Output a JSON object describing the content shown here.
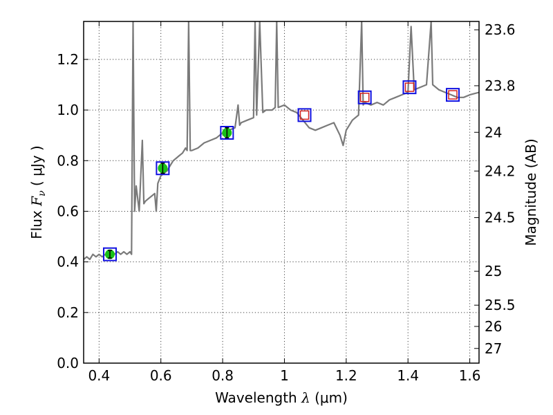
{
  "chart_data": {
    "type": "line",
    "title": "",
    "xlabel": "Wavelength  λ (μm)",
    "ylabel": "Flux  F_ν  ( μJy )",
    "ylabel_parts": {
      "prefix": "Flux ",
      "symbol": "F",
      "subscript": "ν",
      "unit_open": "  ( ",
      "unit": "μJy",
      "unit_close": " )"
    },
    "xlabel_parts": {
      "prefix": "Wavelength  ",
      "symbol": "λ",
      "unit": " (μm)"
    },
    "y2label": "Magnitude (AB)",
    "xlim": [
      0.35,
      1.63
    ],
    "ylim": [
      0.0,
      1.35
    ],
    "xticks": [
      {
        "value": 0.4,
        "label": "0.4"
      },
      {
        "value": 0.6,
        "label": "0.6"
      },
      {
        "value": 0.8,
        "label": "0.8"
      },
      {
        "value": 1.0,
        "label": "1"
      },
      {
        "value": 1.2,
        "label": "1.2"
      },
      {
        "value": 1.4,
        "label": "1.4"
      },
      {
        "value": 1.6,
        "label": "1.6"
      }
    ],
    "yticks": [
      {
        "value": 0.0,
        "label": "0.0"
      },
      {
        "value": 0.2,
        "label": "0.2"
      },
      {
        "value": 0.4,
        "label": "0.4"
      },
      {
        "value": 0.6,
        "label": "0.6"
      },
      {
        "value": 0.8,
        "label": "0.8"
      },
      {
        "value": 1.0,
        "label": "1.0"
      },
      {
        "value": 1.2,
        "label": "1.2"
      }
    ],
    "y2ticks": [
      {
        "label": "23.6",
        "flux": 1.317
      },
      {
        "label": "23.8",
        "flux": 1.096
      },
      {
        "label": "24",
        "flux": 0.912
      },
      {
        "label": "24.2",
        "flux": 0.759
      },
      {
        "label": "24.5",
        "flux": 0.575
      },
      {
        "label": "25",
        "flux": 0.363
      },
      {
        "label": "25.5",
        "flux": 0.229
      },
      {
        "label": "26",
        "flux": 0.145
      },
      {
        "label": "27",
        "flux": 0.058
      }
    ],
    "grid": true,
    "colors": {
      "spectrum": "#7a7a7a",
      "marker_box": "#1010e0",
      "observed_fill": "#18c018",
      "model_point": "#d02020"
    },
    "series": [
      {
        "kind": "line",
        "points": [
          [
            0.35,
            0.41
          ],
          [
            0.36,
            0.42
          ],
          [
            0.37,
            0.41
          ],
          [
            0.38,
            0.43
          ],
          [
            0.39,
            0.42
          ],
          [
            0.4,
            0.43
          ],
          [
            0.41,
            0.42
          ],
          [
            0.42,
            0.43
          ],
          [
            0.43,
            0.42
          ],
          [
            0.44,
            0.44
          ],
          [
            0.45,
            0.43
          ],
          [
            0.46,
            0.44
          ],
          [
            0.47,
            0.43
          ],
          [
            0.48,
            0.44
          ],
          [
            0.49,
            0.43
          ],
          [
            0.5,
            0.44
          ],
          [
            0.505,
            0.43
          ],
          [
            0.51,
            1.35
          ],
          [
            0.515,
            0.6
          ],
          [
            0.52,
            0.7
          ],
          [
            0.53,
            0.6
          ],
          [
            0.54,
            0.88
          ],
          [
            0.545,
            0.63
          ],
          [
            0.55,
            0.64
          ],
          [
            0.56,
            0.65
          ],
          [
            0.57,
            0.66
          ],
          [
            0.58,
            0.67
          ],
          [
            0.585,
            0.6
          ],
          [
            0.59,
            0.71
          ],
          [
            0.6,
            0.74
          ],
          [
            0.61,
            0.75
          ],
          [
            0.62,
            0.76
          ],
          [
            0.63,
            0.78
          ],
          [
            0.64,
            0.8
          ],
          [
            0.65,
            0.81
          ],
          [
            0.66,
            0.82
          ],
          [
            0.67,
            0.83
          ],
          [
            0.68,
            0.85
          ],
          [
            0.685,
            0.84
          ],
          [
            0.69,
            1.35
          ],
          [
            0.695,
            0.84
          ],
          [
            0.7,
            0.84
          ],
          [
            0.72,
            0.85
          ],
          [
            0.74,
            0.87
          ],
          [
            0.76,
            0.88
          ],
          [
            0.78,
            0.89
          ],
          [
            0.8,
            0.91
          ],
          [
            0.82,
            0.92
          ],
          [
            0.84,
            0.93
          ],
          [
            0.85,
            1.02
          ],
          [
            0.855,
            0.94
          ],
          [
            0.86,
            0.95
          ],
          [
            0.88,
            0.96
          ],
          [
            0.9,
            0.97
          ],
          [
            0.905,
            1.35
          ],
          [
            0.91,
            0.98
          ],
          [
            0.92,
            1.35
          ],
          [
            0.93,
            0.99
          ],
          [
            0.94,
            1.0
          ],
          [
            0.96,
            1.0
          ],
          [
            0.97,
            1.01
          ],
          [
            0.975,
            1.35
          ],
          [
            0.98,
            1.01
          ],
          [
            1.0,
            1.02
          ],
          [
            1.02,
            1.0
          ],
          [
            1.04,
            0.99
          ],
          [
            1.06,
            0.96
          ],
          [
            1.08,
            0.93
          ],
          [
            1.1,
            0.92
          ],
          [
            1.12,
            0.93
          ],
          [
            1.14,
            0.94
          ],
          [
            1.16,
            0.95
          ],
          [
            1.18,
            0.9
          ],
          [
            1.19,
            0.86
          ],
          [
            1.2,
            0.92
          ],
          [
            1.22,
            0.96
          ],
          [
            1.24,
            0.98
          ],
          [
            1.25,
            1.35
          ],
          [
            1.255,
            1.02
          ],
          [
            1.26,
            1.03
          ],
          [
            1.28,
            1.02
          ],
          [
            1.3,
            1.03
          ],
          [
            1.32,
            1.02
          ],
          [
            1.34,
            1.04
          ],
          [
            1.36,
            1.05
          ],
          [
            1.38,
            1.06
          ],
          [
            1.4,
            1.07
          ],
          [
            1.41,
            1.33
          ],
          [
            1.42,
            1.08
          ],
          [
            1.44,
            1.09
          ],
          [
            1.46,
            1.1
          ],
          [
            1.475,
            1.35
          ],
          [
            1.48,
            1.1
          ],
          [
            1.5,
            1.08
          ],
          [
            1.52,
            1.07
          ],
          [
            1.54,
            1.06
          ],
          [
            1.56,
            1.05
          ],
          [
            1.58,
            1.05
          ],
          [
            1.6,
            1.06
          ],
          [
            1.63,
            1.07
          ]
        ]
      },
      {
        "kind": "observed_photometry",
        "points": [
          {
            "x": 0.435,
            "y": 0.43,
            "err": 0.015
          },
          {
            "x": 0.606,
            "y": 0.77,
            "err": 0.02
          },
          {
            "x": 0.814,
            "y": 0.91,
            "err": 0.02
          }
        ]
      },
      {
        "kind": "model_photometry",
        "points": [
          {
            "x": 1.065,
            "y": 0.98
          },
          {
            "x": 1.26,
            "y": 1.05
          },
          {
            "x": 1.405,
            "y": 1.09
          },
          {
            "x": 1.545,
            "y": 1.06
          }
        ]
      }
    ]
  }
}
